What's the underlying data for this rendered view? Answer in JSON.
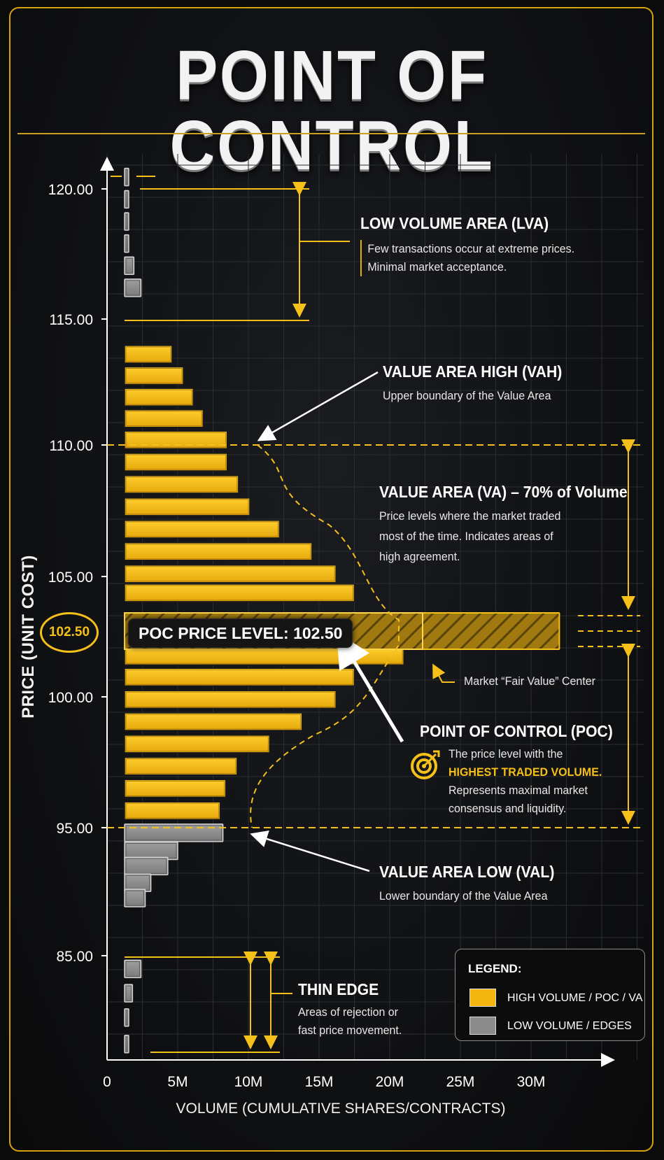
{
  "title": "POINT OF CONTROL",
  "colors": {
    "accent": "#f5c01a",
    "bar_high": "#f3b50f",
    "bar_low": "#8c8c8c",
    "background": "#0e0f11",
    "frame": "#d4a20e"
  },
  "chart_data": {
    "type": "bar",
    "orientation": "horizontal",
    "xlabel": "VOLUME (CUMULATIVE SHARES/CONTRACTS)",
    "ylabel": "PRICE (UNIT COST)",
    "xlim": [
      0,
      35000000
    ],
    "x_ticks": [
      "0",
      "5M",
      "10M",
      "15M",
      "20M",
      "25M",
      "30M"
    ],
    "y_ticks": [
      "120.00",
      "115.00",
      "110.00",
      "105.00",
      "100.00",
      "95.00",
      "85.00"
    ],
    "grid": true,
    "series": [
      {
        "name": "HIGH VOLUME / POC / VA",
        "color": "#f3b50f",
        "bars": [
          {
            "price": 113.6,
            "volume": 4600000
          },
          {
            "price": 112.75,
            "volume": 5400000
          },
          {
            "price": 111.9,
            "volume": 6100000
          },
          {
            "price": 111.05,
            "volume": 6800000
          },
          {
            "price": 110.2,
            "volume": 8500000
          },
          {
            "price": 109.35,
            "volume": 8500000
          },
          {
            "price": 108.5,
            "volume": 9300000
          },
          {
            "price": 107.65,
            "volume": 10100000
          },
          {
            "price": 106.8,
            "volume": 12200000
          },
          {
            "price": 105.95,
            "volume": 14500000
          },
          {
            "price": 105.1,
            "volume": 16200000
          },
          {
            "price": 104.25,
            "volume": 17500000
          },
          {
            "price": 101.55,
            "volume": 21000000
          },
          {
            "price": 100.75,
            "volume": 17500000
          },
          {
            "price": 99.9,
            "volume": 16200000
          },
          {
            "price": 99.05,
            "volume": 13800000
          },
          {
            "price": 98.2,
            "volume": 11500000
          },
          {
            "price": 97.35,
            "volume": 9200000
          },
          {
            "price": 96.5,
            "volume": 8400000
          },
          {
            "price": 95.65,
            "volume": 8000000
          }
        ]
      },
      {
        "name": "POC",
        "color": "#f3b50f",
        "bars": [
          {
            "price": 102.5,
            "volume": 32000000
          }
        ]
      },
      {
        "name": "LOW VOLUME / EDGES",
        "color": "#8c8c8c",
        "bars": [
          {
            "price": 120.5,
            "volume": 400000
          },
          {
            "price": 119.6,
            "volume": 700000
          },
          {
            "price": 118.75,
            "volume": 900000
          },
          {
            "price": 117.9,
            "volume": 1300000
          },
          {
            "price": 117.05,
            "volume": 1900000
          },
          {
            "price": 116.2,
            "volume": 2400000
          },
          {
            "price": 94.6,
            "volume": 8200000
          },
          {
            "price": 93.2,
            "volume": 5000000
          },
          {
            "price": 92.0,
            "volume": 4300000
          },
          {
            "price": 90.7,
            "volume": 3100000
          },
          {
            "price": 89.5,
            "volume": 2700000
          },
          {
            "price": 84.4,
            "volume": 2400000
          },
          {
            "price": 83.3,
            "volume": 1800000
          },
          {
            "price": 82.2,
            "volume": 1300000
          },
          {
            "price": 81.0,
            "volume": 1000000
          }
        ]
      }
    ],
    "poc_price": 102.5,
    "value_area_high": 110.0,
    "value_area_low": 95.0,
    "value_area_share": "70% of Volume"
  },
  "poc_badge": "102.50",
  "poc_tag": "POC PRICE LEVEL: 102.50",
  "annotations": {
    "lva": {
      "head": "LOW VOLUME AREA (LVA)",
      "line1": "Few transactions occur at extreme prices.",
      "line2": "Minimal market acceptance."
    },
    "vah": {
      "head": "VALUE AREA HIGH (VAH)",
      "line1": "Upper boundary of the Value Area"
    },
    "va": {
      "head": "VALUE AREA (VA) – 70% of Volume",
      "line1": "Price levels where the market traded",
      "line2": "most of the time. Indicates areas of",
      "line3": "high agreement."
    },
    "fair_value": "Market “Fair Value” Center",
    "poc": {
      "head": "POINT OF CONTROL (POC)",
      "line1": "The price level with the",
      "highlight": "HIGHEST TRADED VOLUME.",
      "line3": "Represents maximal market",
      "line4": "consensus and liquidity."
    },
    "val": {
      "head": "VALUE AREA LOW (VAL)",
      "line1": "Lower boundary of the Value Area"
    },
    "thin": {
      "head": "THIN EDGE",
      "line1": "Areas of rejection or",
      "line2": "fast price movement."
    }
  },
  "legend": {
    "title": "LEGEND:",
    "items": [
      {
        "label": "HIGH VOLUME / POC / VA",
        "color": "#f3b50f"
      },
      {
        "label": "LOW VOLUME / EDGES",
        "color": "#8c8c8c"
      }
    ]
  }
}
